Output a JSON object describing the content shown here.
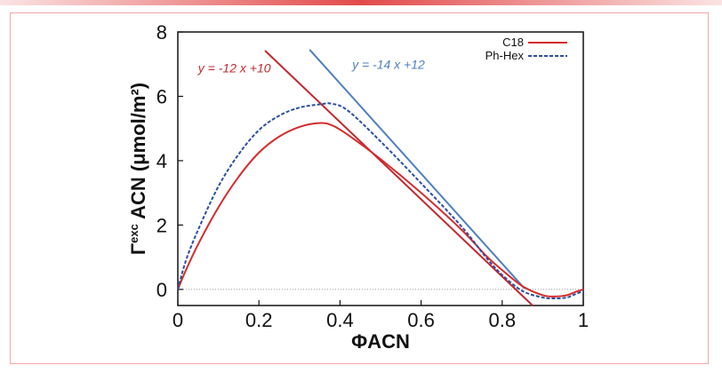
{
  "colors": {
    "c18": "#d42b2b",
    "phhex": "#2a4f9e",
    "fit_c18": "#c0282f",
    "fit_phhex": "#4f7fbf",
    "accent_rule": "#e24a4a",
    "frame": "#f0a9a9"
  },
  "chart_data": {
    "type": "line",
    "title": "",
    "xlabel": "ΦACN",
    "ylabel": "Γexc ACN (μmol/m²)",
    "ylabel_parts": {
      "symbol": "Γ",
      "superscript": "exc",
      "main": " ACN (μmol/m²)"
    },
    "xlim": [
      0,
      1
    ],
    "ylim": [
      -0.5,
      8
    ],
    "xticks": [
      0,
      0.2,
      0.4,
      0.6,
      0.8,
      1
    ],
    "xtick_labels": [
      "0",
      "0.2",
      "0.4",
      "0.6",
      "0.8",
      "1"
    ],
    "yticks": [
      0,
      2,
      4,
      6,
      8
    ],
    "ytick_labels": [
      "0",
      "2",
      "4",
      "6",
      "8"
    ],
    "grid": false,
    "legend_position": "top-right",
    "zero_line": true,
    "series": [
      {
        "name": "C18",
        "style": "solid",
        "x": [
          0,
          0.02,
          0.05,
          0.1,
          0.15,
          0.2,
          0.25,
          0.3,
          0.35,
          0.38,
          0.42,
          0.5,
          0.6,
          0.7,
          0.76,
          0.8,
          0.85,
          0.9,
          0.93,
          0.96,
          0.98,
          1.0
        ],
        "y": [
          0,
          0.6,
          1.4,
          2.55,
          3.5,
          4.25,
          4.75,
          5.05,
          5.17,
          5.1,
          4.8,
          4.05,
          3.0,
          1.85,
          1.05,
          0.6,
          0.1,
          -0.18,
          -0.22,
          -0.18,
          -0.08,
          0.0
        ]
      },
      {
        "name": "Ph-Hex",
        "style": "dashed",
        "x": [
          0,
          0.02,
          0.05,
          0.1,
          0.15,
          0.2,
          0.25,
          0.3,
          0.35,
          0.38,
          0.42,
          0.5,
          0.6,
          0.7,
          0.76,
          0.8,
          0.85,
          0.9,
          0.93,
          0.96,
          0.98,
          1.0
        ],
        "y": [
          0,
          0.9,
          1.85,
          3.2,
          4.2,
          4.95,
          5.4,
          5.65,
          5.75,
          5.77,
          5.55,
          4.6,
          3.3,
          1.95,
          1.0,
          0.45,
          -0.05,
          -0.25,
          -0.28,
          -0.25,
          -0.15,
          -0.05
        ]
      }
    ],
    "fit_lines": [
      {
        "label": "y = -12 x +10",
        "slope": -12,
        "intercept": 10,
        "x_range": [
          0.215,
          0.875
        ],
        "color_key": "fit_c18",
        "label_at": [
          0.05,
          6.75
        ]
      },
      {
        "label": "y = -14 x +12",
        "slope": -14,
        "intercept": 12,
        "x_range": [
          0.325,
          0.855
        ],
        "color_key": "fit_phhex",
        "label_at": [
          0.43,
          6.85
        ]
      }
    ]
  }
}
